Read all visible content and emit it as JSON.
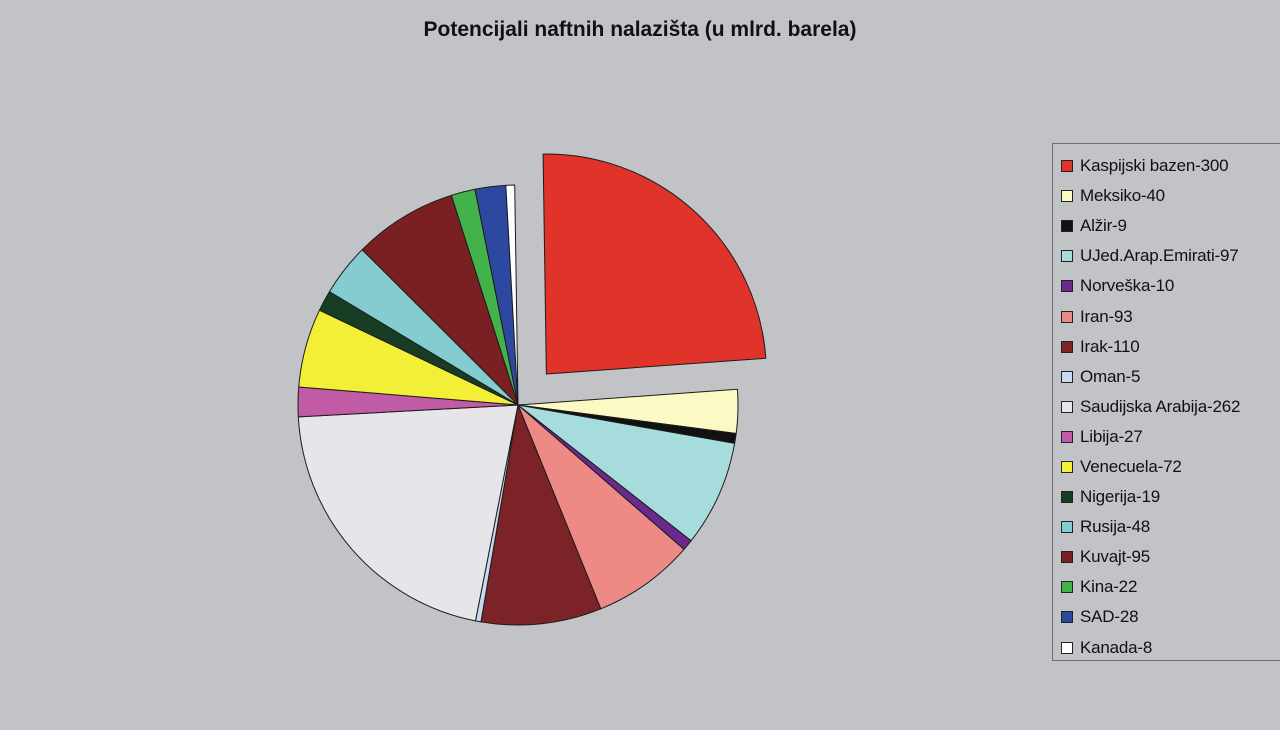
{
  "chart_data": {
    "type": "pie",
    "title": "Potencijali naftnih nalazišta (u mlrd. barela)",
    "legend_position": "right",
    "exploded_slice": "Kaspijski bazen",
    "slices": [
      {
        "name": "Kaspijski bazen",
        "value": 300,
        "legend": "Kaspijski bazen-300",
        "color": "#e03329"
      },
      {
        "name": "Meksiko",
        "value": 40,
        "legend": "Meksiko-40",
        "color": "#fbf9c4"
      },
      {
        "name": "Alžir",
        "value": 9,
        "legend": "Alžir-9",
        "color": "#111111"
      },
      {
        "name": "Ujed.Arap.Emirati",
        "value": 97,
        "legend": "UJed.Arap.Emirati-97",
        "color": "#a6dcdc"
      },
      {
        "name": "Norveška",
        "value": 10,
        "legend": "Norveška-10",
        "color": "#6a2a8c"
      },
      {
        "name": "Iran",
        "value": 93,
        "legend": "Iran-93",
        "color": "#ee8a86"
      },
      {
        "name": "Irak",
        "value": 110,
        "legend": "Irak-110",
        "color": "#7c2327"
      },
      {
        "name": "Oman",
        "value": 5,
        "legend": "Oman-5",
        "color": "#c8daf0"
      },
      {
        "name": "Saudijska Arabija",
        "value": 262,
        "legend": "Saudijska Arabija-262",
        "color": "#e6e6ea"
      },
      {
        "name": "Libija",
        "value": 27,
        "legend": "Libija-27",
        "color": "#c25ba5"
      },
      {
        "name": "Venecuela",
        "value": 72,
        "legend": "Venecuela-72",
        "color": "#f3ee36"
      },
      {
        "name": "Nigerija",
        "value": 19,
        "legend": "Nigerija-19",
        "color": "#173d24"
      },
      {
        "name": "Rusija",
        "value": 48,
        "legend": "Rusija-48",
        "color": "#84ccd0"
      },
      {
        "name": "Kuvajt",
        "value": 95,
        "legend": "Kuvajt-95",
        "color": "#7a1f22"
      },
      {
        "name": "Kina",
        "value": 22,
        "legend": "Kina-22",
        "color": "#43b24a"
      },
      {
        "name": "SAD",
        "value": 28,
        "legend": "SAD-28",
        "color": "#2c48a0"
      },
      {
        "name": "Kanada",
        "value": 8,
        "legend": "Kanada-8",
        "color": "#ffffff"
      }
    ]
  }
}
